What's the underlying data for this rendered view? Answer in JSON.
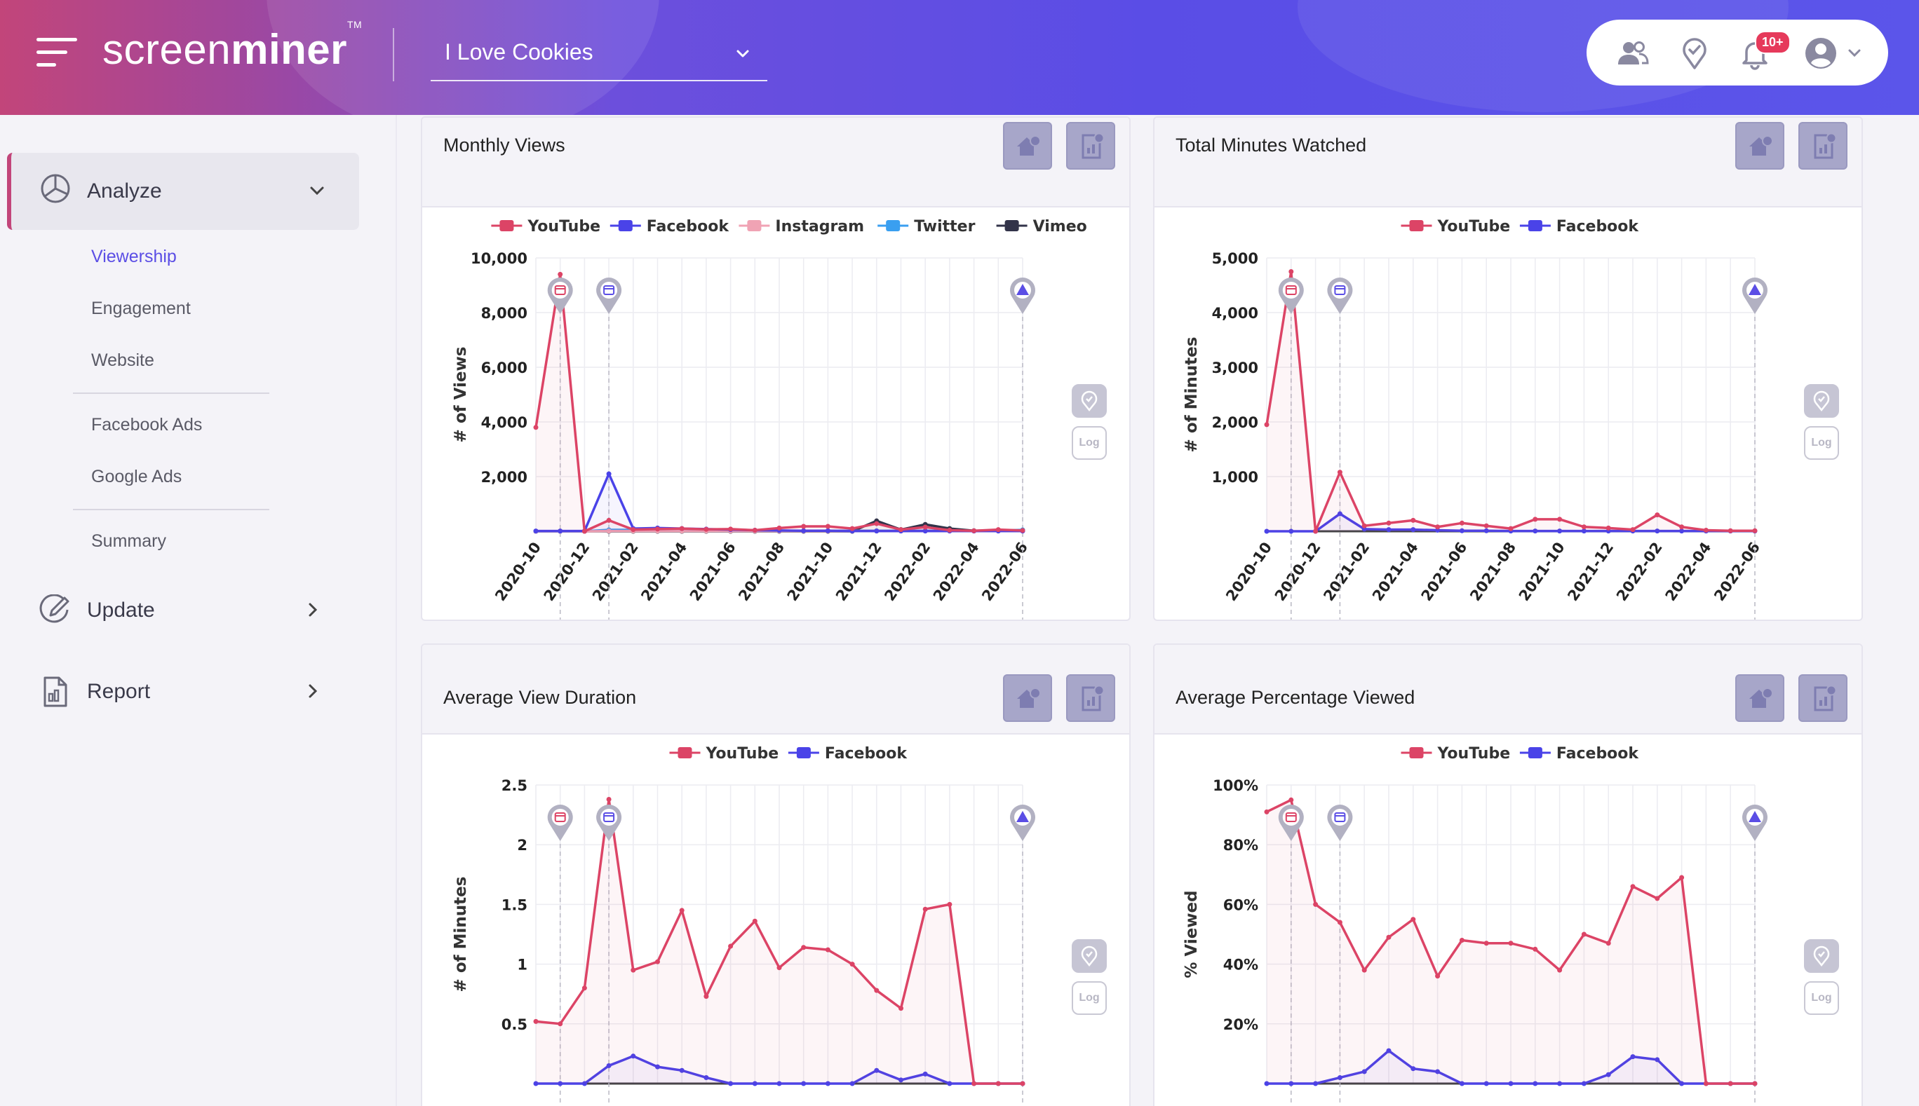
{
  "header": {
    "logo_light": "screen",
    "logo_bold": "miner",
    "logo_tm": "TM",
    "project": "I Love Cookies",
    "notification_count": "10+"
  },
  "sidebar": {
    "analyze_label": "Analyze",
    "sub_items": [
      "Viewership",
      "Engagement",
      "Website",
      "Facebook Ads",
      "Google Ads",
      "Summary"
    ],
    "update_label": "Update",
    "report_label": "Report"
  },
  "colors": {
    "youtube": "#dc4466",
    "facebook": "#4a43e8",
    "instagram": "#f0a3b4",
    "twitter": "#3a9ff0",
    "vimeo": "#323349",
    "accent": "#5b4ee5"
  },
  "panels": [
    {
      "title": "Monthly Views"
    },
    {
      "title": "Total Minutes Watched"
    },
    {
      "title": "Average View Duration"
    },
    {
      "title": "Average Percentage Viewed"
    }
  ],
  "chart_data": [
    {
      "type": "line",
      "title": "Monthly Views",
      "ylabel": "# of Views",
      "ylim": [
        0,
        10000
      ],
      "yticks": [
        "10,000",
        "8,000",
        "6,000",
        "4,000",
        "2,000"
      ],
      "x_tick_labels": [
        "2020-10",
        "2020-12",
        "2021-02",
        "2021-04",
        "2021-06",
        "2021-08",
        "2021-10",
        "2021-12",
        "2022-02",
        "2022-04",
        "2022-06"
      ],
      "legend": "top",
      "grid": true,
      "series": [
        {
          "name": "YouTube",
          "values": [
            3800,
            9400,
            0,
            400,
            60,
            80,
            100,
            70,
            80,
            40,
            120,
            180,
            180,
            100,
            280,
            60,
            150,
            40,
            20,
            60,
            30
          ]
        },
        {
          "name": "Facebook",
          "values": [
            10,
            10,
            10,
            2100,
            100,
            120,
            100,
            80,
            60,
            40,
            30,
            20,
            20,
            10,
            10,
            10,
            10,
            10,
            10,
            10,
            10
          ]
        },
        {
          "name": "Instagram",
          "values": [
            0,
            0,
            0,
            10,
            10,
            10,
            10,
            10,
            10,
            10,
            10,
            10,
            10,
            10,
            10,
            10,
            10,
            10,
            10,
            10,
            10
          ]
        },
        {
          "name": "Twitter",
          "values": [
            0,
            0,
            0,
            50,
            50,
            60,
            50,
            40,
            30,
            20,
            20,
            20,
            20,
            20,
            20,
            20,
            20,
            20,
            20,
            20,
            50
          ]
        },
        {
          "name": "Vimeo",
          "values": [
            0,
            0,
            0,
            0,
            0,
            0,
            0,
            0,
            0,
            0,
            0,
            0,
            0,
            0,
            380,
            60,
            250,
            100,
            20,
            20,
            20
          ]
        }
      ]
    },
    {
      "type": "line",
      "title": "Total Minutes Watched",
      "ylabel": "# of Minutes",
      "ylim": [
        0,
        5000
      ],
      "yticks": [
        "5,000",
        "4,000",
        "3,000",
        "2,000",
        "1,000"
      ],
      "x_tick_labels": [
        "2020-10",
        "2020-12",
        "2021-02",
        "2021-04",
        "2021-06",
        "2021-08",
        "2021-10",
        "2021-12",
        "2022-02",
        "2022-04",
        "2022-06"
      ],
      "legend": "top",
      "grid": true,
      "series": [
        {
          "name": "YouTube",
          "values": [
            1950,
            4750,
            0,
            1080,
            100,
            150,
            200,
            80,
            150,
            100,
            50,
            220,
            220,
            80,
            60,
            30,
            300,
            80,
            20,
            10,
            10
          ]
        },
        {
          "name": "Facebook",
          "values": [
            0,
            0,
            0,
            320,
            40,
            30,
            30,
            20,
            10,
            10,
            5,
            5,
            5,
            5,
            5,
            5,
            5,
            5,
            5,
            5,
            5
          ]
        }
      ]
    },
    {
      "type": "line",
      "title": "Average View Duration",
      "ylabel": "# of Minutes",
      "ylim": [
        0,
        2.5
      ],
      "yticks": [
        "2.5",
        "2",
        "1.5",
        "1",
        "0.5"
      ],
      "legend": "top",
      "grid": true,
      "series": [
        {
          "name": "YouTube",
          "values": [
            0.52,
            0.5,
            0.8,
            2.38,
            0.95,
            1.02,
            1.45,
            0.73,
            1.15,
            1.36,
            0.97,
            1.14,
            1.12,
            1.0,
            0.78,
            0.63,
            1.46,
            1.5,
            0.0,
            0.0,
            0.0
          ]
        },
        {
          "name": "Facebook",
          "values": [
            0.0,
            0.0,
            0.0,
            0.15,
            0.23,
            0.14,
            0.11,
            0.05,
            0.0,
            0.0,
            0.0,
            0.0,
            0.0,
            0.0,
            0.11,
            0.03,
            0.08,
            0.0,
            0.0,
            0.0,
            0.0
          ]
        }
      ]
    },
    {
      "type": "line",
      "title": "Average Percentage Viewed",
      "ylabel": "% Viewed",
      "ylim": [
        0,
        100
      ],
      "yticks": [
        "100%",
        "80%",
        "60%",
        "40%",
        "20%"
      ],
      "legend": "top",
      "grid": true,
      "series": [
        {
          "name": "YouTube",
          "values": [
            91,
            95,
            60,
            54,
            38,
            49,
            55,
            36,
            48,
            47,
            47,
            45,
            38,
            50,
            47,
            66,
            62,
            69,
            0,
            0,
            0
          ]
        },
        {
          "name": "Facebook",
          "values": [
            0,
            0,
            0,
            2,
            4,
            11,
            5,
            4,
            0,
            0,
            0,
            0,
            0,
            0,
            3,
            9,
            8,
            0,
            0,
            0,
            0
          ]
        }
      ]
    }
  ]
}
